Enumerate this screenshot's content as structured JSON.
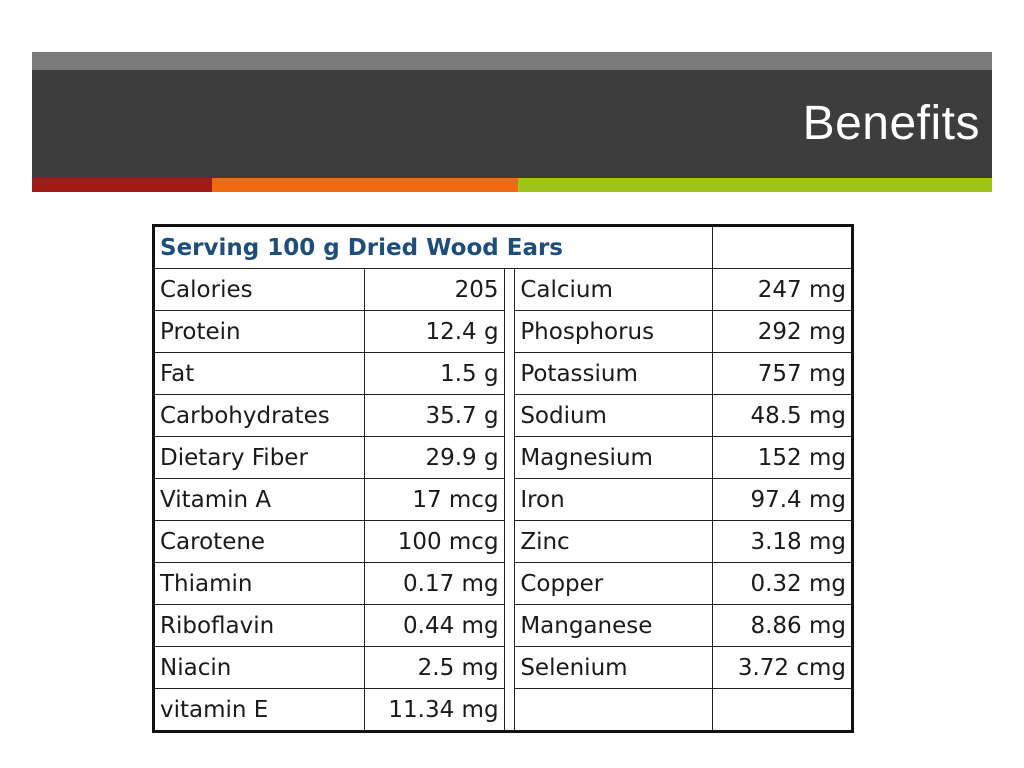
{
  "slide": {
    "title": "Benefits"
  },
  "colors": {
    "banner_dark": "#3d3d3d",
    "banner_light": "#7a7a7a",
    "stripe_red": "#a31b15",
    "stripe_orange": "#f26a10",
    "stripe_green": "#9fc51b",
    "table_heading": "#1f4e79"
  },
  "table": {
    "heading": "Serving 100 g Dried Wood Ears",
    "rows": [
      {
        "left_name": "Calories",
        "left_value": "205",
        "right_name": "Calcium",
        "right_value": "247 mg"
      },
      {
        "left_name": "Protein",
        "left_value": "12.4 g",
        "right_name": "Phosphorus",
        "right_value": "292 mg"
      },
      {
        "left_name": "Fat",
        "left_value": "1.5 g",
        "right_name": "Potassium",
        "right_value": "757 mg"
      },
      {
        "left_name": "Carbohydrates",
        "left_value": "35.7 g",
        "right_name": "Sodium",
        "right_value": "48.5 mg"
      },
      {
        "left_name": "Dietary Fiber",
        "left_value": "29.9 g",
        "right_name": "Magnesium",
        "right_value": "152 mg"
      },
      {
        "left_name": "Vitamin A",
        "left_value": "17 mcg",
        "right_name": "Iron",
        "right_value": "97.4 mg"
      },
      {
        "left_name": "Carotene",
        "left_value": "100 mcg",
        "right_name": "Zinc",
        "right_value": "3.18 mg"
      },
      {
        "left_name": "Thiamin",
        "left_value": "0.17 mg",
        "right_name": "Copper",
        "right_value": "0.32 mg"
      },
      {
        "left_name": "Riboflavin",
        "left_value": "0.44 mg",
        "right_name": "Manganese",
        "right_value": "8.86 mg"
      },
      {
        "left_name": "Niacin",
        "left_value": "2.5 mg",
        "right_name": "Selenium",
        "right_value": "3.72 cmg"
      },
      {
        "left_name": "vitamin E",
        "left_value": "11.34 mg",
        "right_name": "",
        "right_value": ""
      }
    ]
  }
}
